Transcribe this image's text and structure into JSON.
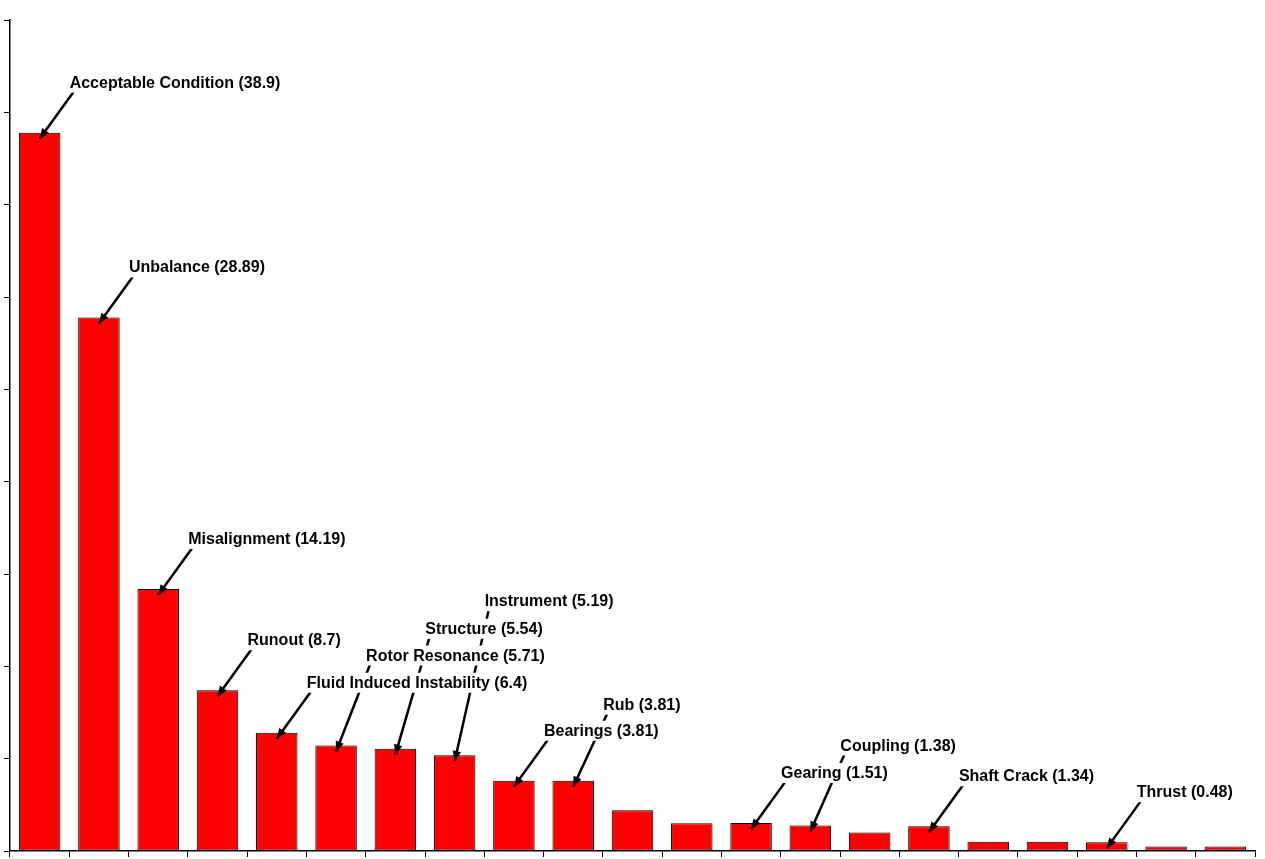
{
  "chart_data": {
    "type": "bar",
    "categories": [
      null,
      null,
      null,
      null,
      null,
      null,
      null,
      null,
      null,
      null,
      null,
      null,
      null,
      null,
      null,
      null,
      null,
      null,
      null,
      null,
      null
    ],
    "values": [
      38.9,
      28.89,
      14.19,
      8.7,
      6.4,
      5.71,
      5.54,
      5.19,
      3.81,
      3.81,
      2.2,
      1.5,
      1.51,
      1.38,
      1.0,
      1.34,
      0.5,
      0.5,
      0.48,
      0.25,
      0.25
    ],
    "value_labels": [
      "Acceptable Condition (38.9)",
      "Unbalance (28.89)",
      "Misalignment (14.19)",
      "Runout (8.7)",
      "Fluid Induced Instability (6.4)",
      "Rotor Resonance (5.71)",
      "Structure (5.54)",
      "Instrument (5.19)",
      "Bearings (3.81)",
      "Rub (3.81)",
      null,
      null,
      "Gearing (1.51)",
      "Coupling (1.38)",
      null,
      "Shaft Crack (1.34)",
      null,
      null,
      "Thrust (0.48)",
      null,
      null
    ],
    "color": "#ff0000",
    "ylim": [
      0,
      45
    ],
    "yticks": [
      {
        "value": 0,
        "label": null
      },
      {
        "value": 5,
        "label": null
      },
      {
        "value": 10,
        "label": null
      },
      {
        "value": 15,
        "label": null
      },
      {
        "value": 20,
        "label": null
      },
      {
        "value": 25,
        "label": null
      },
      {
        "value": 30,
        "label": null
      },
      {
        "value": 35,
        "label": null
      },
      {
        "value": 40,
        "label": null
      },
      {
        "value": 45,
        "label": null
      }
    ],
    "tick_labels": false,
    "grid": false,
    "legend": false
  }
}
